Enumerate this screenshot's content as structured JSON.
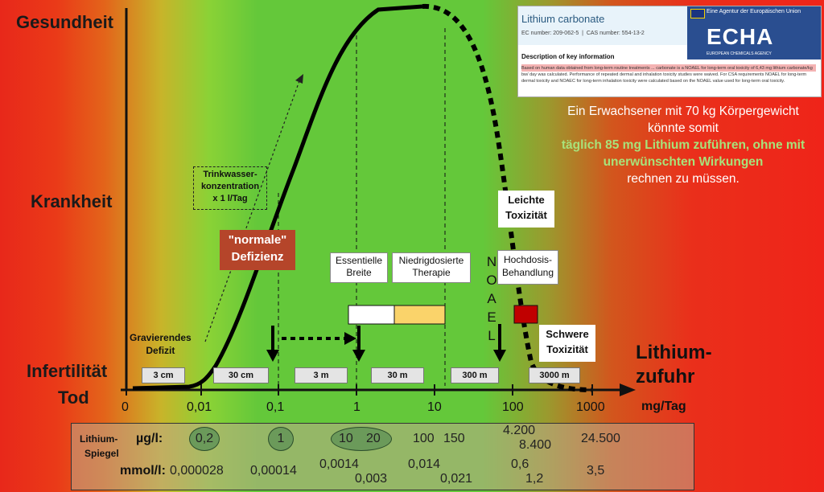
{
  "y_labels": {
    "health": "Gesundheit",
    "disease": "Krankheit",
    "infertility": "Infertilität",
    "death": "Tod"
  },
  "x_axis": {
    "label_line1": "Lithium-",
    "label_line2": "zufuhr",
    "unit": "mg/Tag",
    "ticks": [
      "0",
      "0,01",
      "0,1",
      "1",
      "10",
      "100",
      "1000"
    ]
  },
  "dose_ranges": [
    "3 cm",
    "30 cm",
    "3 m",
    "30 m",
    "300 m",
    "3000 m"
  ],
  "annotations": {
    "trinkwasser": [
      "Trinkwasser-",
      "konzentration",
      "x 1 l/Tag"
    ],
    "normale": [
      "\"normale\"",
      "Defizienz"
    ],
    "gravierend": [
      "Gravierendes",
      "Defizit"
    ],
    "essentielle": [
      "Essentielle",
      "Breite"
    ],
    "niedrig": [
      "Niedrigdosierte",
      "Therapie"
    ],
    "noael": [
      "N",
      "O",
      "A",
      "E",
      "L"
    ],
    "leichte": [
      "Leichte",
      "Toxizität"
    ],
    "hochdosis": [
      "Hochdosis-",
      "Behandlung"
    ],
    "schwere": [
      "Schwere",
      "Toxizität"
    ]
  },
  "echa": {
    "title": "Lithium carbonate",
    "ec": "EC number: 209-062-5",
    "cas": "CAS number: 554-13-2",
    "desc_title": "Description of key information",
    "banner": "Eine Agentur der Europäischen Union",
    "logo": "ECHA",
    "logo_sub": "EUROPEAN CHEMICALS AGENCY",
    "body_red": "Based on human data obtained from long-term routine treatments ... carbonate is a NOAEL for long-term oral toxicity of 6,43 mg lithium carbonate/kg bw/ day was calculated. Performance of repeated dermal and",
    "body_rest": "inhalation toxicity studies were waived. For CSA requirements NOAEL for long-term dermal toxicity and NOAEC for long-term inhalation toxicity were calculated based on the NOAEL value used for long-term oral toxicity."
  },
  "statement": {
    "line1": "Ein Erwachsener mit 70 kg Körpergewicht",
    "line2": "könnte somit",
    "line3": "täglich 85 mg Lithium zuführen, ohne mit",
    "line4": "unerwünschten Wirkungen",
    "line5": "rechnen zu müssen."
  },
  "levels": {
    "label1": "Lithium-",
    "label2": "Spiegel",
    "ugl_label": "µg/l:",
    "mmol_label": "mmol/l:",
    "ugl": [
      "0,2",
      "1",
      "10",
      "20",
      "100",
      "150",
      "4.200",
      "8.400",
      "24.500"
    ],
    "mmol": [
      "0,000028",
      "0,00014",
      "0,0014",
      "0,003",
      "0,014",
      "0,021",
      "0,6",
      "1,2",
      "3,5"
    ]
  },
  "colors": {
    "curve": "#000000",
    "low_dose_box": "#fad36a",
    "high_dose_box": "#c00000",
    "label_box": "#b5452a",
    "statement_green": "#a8e27a"
  }
}
